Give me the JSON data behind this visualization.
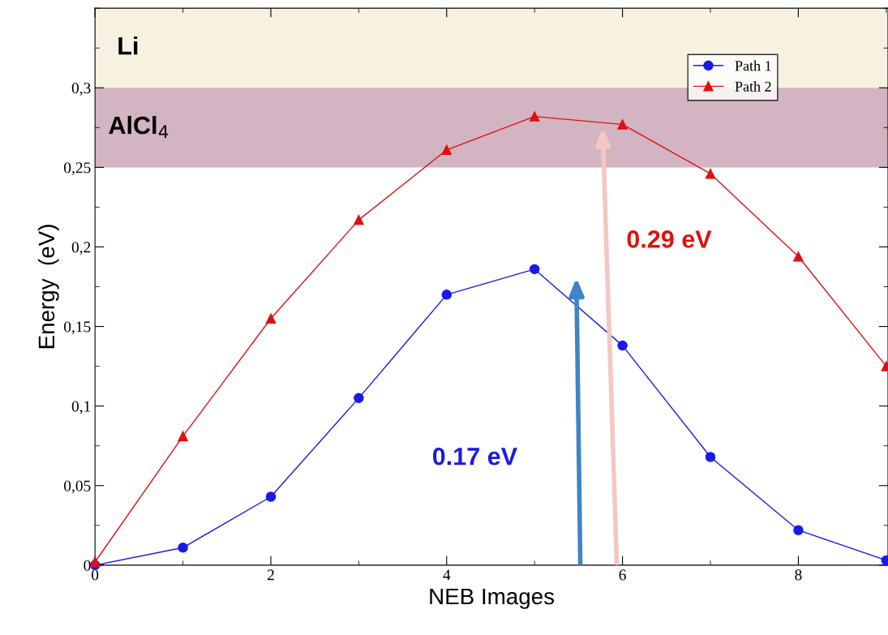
{
  "chart_data": {
    "type": "line",
    "xlabel": "NEB Images",
    "ylabel": "Energy  (eV)",
    "x": [
      0,
      1,
      2,
      3,
      4,
      5,
      6,
      7,
      8,
      9
    ],
    "series": [
      {
        "name": "Path 1",
        "color": "#1a1ae6",
        "marker": "circle",
        "values": [
          0,
          0.011,
          0.043,
          0.105,
          0.17,
          0.186,
          0.138,
          0.068,
          0.022,
          0.003
        ]
      },
      {
        "name": "Path 2",
        "color": "#e01010",
        "marker": "triangle",
        "values": [
          0.002,
          0.081,
          0.155,
          0.217,
          0.261,
          0.282,
          0.277,
          0.246,
          0.194,
          0.125
        ]
      }
    ],
    "xlim": [
      0,
      9.02
    ],
    "ylim": [
      0,
      0.35
    ],
    "xticks": [
      0,
      2,
      4,
      6,
      8
    ],
    "yticks": [
      0,
      {
        "value": 0.05,
        "label": "0,05"
      },
      {
        "value": 0.1,
        "label": "0,1"
      },
      {
        "value": 0.15,
        "label": "0,15"
      },
      {
        "value": 0.2,
        "label": "0,2"
      },
      {
        "value": 0.25,
        "label": "0,25"
      },
      {
        "value": 0.3,
        "label": "0,3"
      }
    ],
    "bands": [
      {
        "axis": "y",
        "from": 0.3,
        "to": 0.35,
        "label": "Li",
        "color": "#f7f1e1"
      },
      {
        "axis": "y",
        "from": 0.25,
        "to": 0.3,
        "label": "AlCl$_{4}$",
        "color": "#d3b4c2"
      }
    ],
    "annotations": [
      "0.17 eV",
      "0.29 eV"
    ],
    "legend": "top right",
    "grid": false,
    "line_style": "solid"
  }
}
